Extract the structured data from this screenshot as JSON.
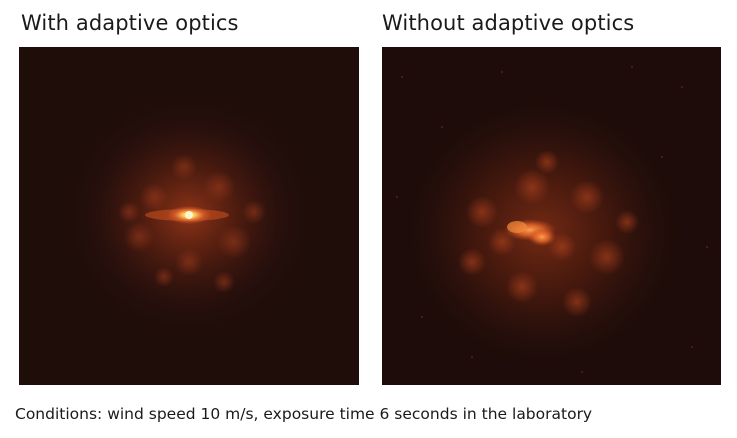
{
  "panels": [
    {
      "title": "With adaptive optics",
      "background": "#1f0d0a",
      "core_color": "#ffd27a",
      "halo_color": "#c4431c"
    },
    {
      "title": "Without adaptive optics",
      "background": "#1d0c09",
      "core_color": "#f07a30",
      "halo_color": "#a93a1a"
    }
  ],
  "caption": "Conditions: wind speed 10 m/s, exposure time 6 seconds in the laboratory"
}
